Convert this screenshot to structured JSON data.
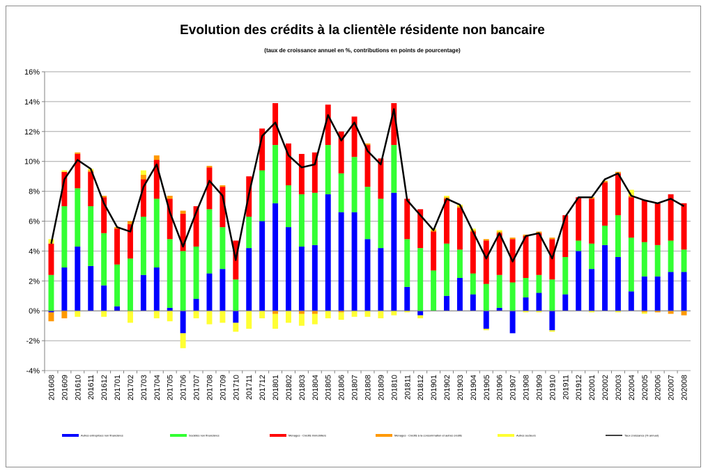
{
  "chart_data": {
    "type": "bar",
    "title": "Evolution  des crédits à la clientèle résidente non bancaire",
    "subtitle": "(taux de croissance annuel en %, contributions en points de pourcentage)",
    "xlabel": "",
    "ylabel": "",
    "ylim": [
      -4,
      16
    ],
    "yticks": [
      "-4%",
      "-2%",
      "0%",
      "2%",
      "4%",
      "6%",
      "8%",
      "10%",
      "12%",
      "14%",
      "16%"
    ],
    "grid": "horizontal",
    "legend_position": "bottom",
    "categories": [
      "201608",
      "201609",
      "201610",
      "201611",
      "201612",
      "201701",
      "201702",
      "201703",
      "201704",
      "201705",
      "201706",
      "201707",
      "201708",
      "201709",
      "201710",
      "201711",
      "201712",
      "201801",
      "201802",
      "201803",
      "201804",
      "201805",
      "201806",
      "201807",
      "201808",
      "201809",
      "201810",
      "201811",
      "201812",
      "201901",
      "201902",
      "201903",
      "201904",
      "201905",
      "201906",
      "201907",
      "201908",
      "201909",
      "201910",
      "201911",
      "201912",
      "202001",
      "202002",
      "202003",
      "202004",
      "202005",
      "202006",
      "202007",
      "202008"
    ],
    "series": [
      {
        "name": "Autres entreprises non financières",
        "color": "#0000ff",
        "kind": "bar",
        "values": [
          -0.1,
          2.9,
          4.3,
          3.0,
          1.7,
          0.3,
          0,
          2.4,
          2.9,
          0.2,
          -1.5,
          0.8,
          2.5,
          2.8,
          -0.8,
          4.2,
          6.0,
          7.2,
          5.6,
          4.3,
          4.4,
          7.8,
          6.6,
          6.6,
          4.8,
          4.2,
          7.9,
          1.6,
          -0.3,
          0,
          1.0,
          2.2,
          1.1,
          -1.2,
          0.2,
          -1.5,
          0.9,
          1.2,
          -1.3,
          1.1,
          4.0,
          2.8,
          4.4,
          3.6,
          1.3,
          2.3,
          2.3,
          2.6,
          2.6
        ]
      },
      {
        "name": "Sociétés non financières",
        "color": "#33ff33",
        "kind": "bar",
        "values": [
          2.4,
          4.1,
          3.9,
          4.0,
          3.5,
          2.8,
          3.5,
          3.9,
          4.6,
          4.6,
          4.0,
          3.5,
          4.3,
          2.8,
          2.1,
          2.1,
          3.4,
          3.9,
          2.8,
          3.5,
          3.5,
          3.3,
          2.6,
          3.7,
          3.5,
          3.3,
          3.2,
          3.2,
          4.2,
          2.7,
          3.5,
          1.9,
          1.4,
          1.8,
          2.2,
          1.9,
          1.3,
          1.2,
          2.1,
          2.5,
          0.7,
          1.7,
          1.3,
          2.8,
          3.6,
          2.3,
          2.1,
          2.1,
          1.5
        ]
      },
      {
        "name": "Ménages - Crédits immobiliers",
        "color": "#ff0000",
        "kind": "bar",
        "values": [
          2.1,
          2.3,
          2.3,
          2.3,
          2.4,
          2.4,
          2.3,
          2.5,
          2.6,
          2.7,
          2.5,
          2.7,
          2.8,
          2.7,
          2.6,
          2.7,
          2.8,
          2.8,
          2.8,
          2.7,
          2.7,
          2.7,
          2.8,
          2.7,
          2.8,
          2.7,
          2.8,
          2.7,
          2.6,
          2.6,
          3.0,
          2.8,
          2.8,
          2.9,
          2.8,
          2.9,
          2.8,
          2.8,
          2.7,
          2.8,
          2.9,
          3.0,
          2.9,
          2.8,
          2.7,
          2.8,
          2.8,
          3.1,
          3.1
        ]
      },
      {
        "name": "Ménages - Crédits à la consommation et autres crédits",
        "color": "#ff9900",
        "kind": "bar",
        "values": [
          -0.6,
          -0.5,
          0.1,
          0.1,
          0.1,
          0.1,
          0.2,
          0.3,
          0.3,
          0.2,
          0.2,
          0,
          0.1,
          0.1,
          0,
          0,
          0,
          -0.2,
          0,
          -0.2,
          -0.2,
          0,
          -0.1,
          0,
          0.1,
          0,
          0,
          0,
          0,
          0.1,
          0.1,
          0.1,
          0.1,
          0.1,
          0.1,
          0.1,
          0.1,
          0.1,
          0.1,
          0,
          0,
          0.1,
          0.1,
          0.1,
          0.1,
          -0.1,
          -0.1,
          -0.2,
          -0.3
        ]
      },
      {
        "name": "Autres secteurs",
        "color": "#ffff33",
        "kind": "bar",
        "values": [
          0.3,
          0.1,
          -0.4,
          0.1,
          -0.4,
          0,
          -0.8,
          0.3,
          -0.5,
          -0.7,
          -1.0,
          -0.5,
          -0.9,
          -0.8,
          -0.6,
          -1.2,
          -0.5,
          -1.0,
          -0.8,
          -0.8,
          -0.7,
          -0.5,
          -0.5,
          -0.4,
          -0.4,
          -0.5,
          -0.3,
          -0.1,
          -0.2,
          0.1,
          0.1,
          0.1,
          0.1,
          -0.1,
          0.1,
          0,
          -0.1,
          -0.1,
          -0.1,
          0,
          0,
          -0.1,
          0,
          -0.1,
          0.4,
          -0.1,
          0,
          0,
          0
        ]
      },
      {
        "name": "Taux croissance (% annuel)",
        "color": "#000000",
        "kind": "line",
        "values": [
          4.5,
          8.8,
          10.1,
          9.5,
          7.2,
          5.6,
          5.3,
          8.3,
          9.8,
          6.6,
          4.3,
          6.6,
          8.7,
          7.7,
          3.4,
          7.8,
          11.7,
          12.6,
          10.4,
          9.6,
          9.8,
          13.1,
          11.4,
          12.6,
          10.7,
          9.8,
          13.5,
          7.4,
          6.4,
          5.4,
          7.5,
          7.1,
          5.3,
          3.5,
          5.2,
          3.3,
          5.0,
          5.2,
          3.5,
          6.3,
          7.6,
          7.6,
          8.8,
          9.2,
          7.7,
          7.4,
          7.2,
          7.5,
          7.0
        ]
      }
    ]
  }
}
